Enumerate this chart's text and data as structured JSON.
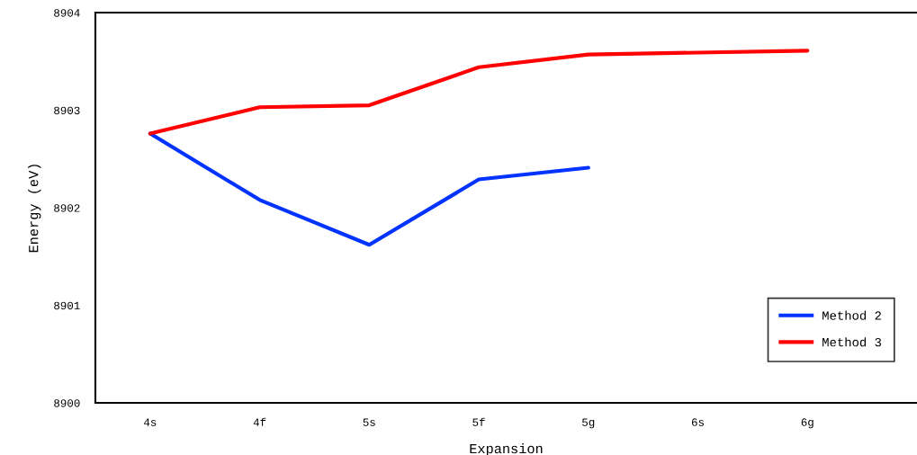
{
  "chart_data": {
    "type": "line",
    "xlabel": "Expansion",
    "ylabel": "Energy (eV)",
    "categories": [
      "4s",
      "4f",
      "5s",
      "5f",
      "5g",
      "6s",
      "6g"
    ],
    "series": [
      {
        "name": "Method 2",
        "color": "#0033ff",
        "values": [
          8902.76,
          8902.08,
          8901.62,
          8902.29,
          8902.41,
          null,
          null
        ]
      },
      {
        "name": "Method 3",
        "color": "#ff0000",
        "values": [
          8902.76,
          8903.03,
          8903.05,
          8903.44,
          8903.57,
          8903.59,
          8903.61
        ]
      }
    ],
    "ylim": [
      8900,
      8904
    ],
    "yticks": [
      8900,
      8901,
      8902,
      8903,
      8904
    ],
    "grid": false,
    "legend": "bottom right",
    "marker": "none",
    "line_style": "solid"
  }
}
